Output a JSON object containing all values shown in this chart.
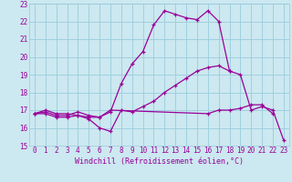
{
  "xlabel": "Windchill (Refroidissement éolien,°C)",
  "background_color": "#cce8f0",
  "grid_color": "#99ccdd",
  "line_color": "#990099",
  "xlim": [
    -0.5,
    23.5
  ],
  "ylim": [
    15,
    23
  ],
  "xticks": [
    0,
    1,
    2,
    3,
    4,
    5,
    6,
    7,
    8,
    9,
    10,
    11,
    12,
    13,
    14,
    15,
    16,
    17,
    18,
    19,
    20,
    21,
    22,
    23
  ],
  "yticks": [
    15,
    16,
    17,
    18,
    19,
    20,
    21,
    22,
    23
  ],
  "series": [
    {
      "x": [
        0,
        1,
        2,
        3,
        4,
        5,
        6,
        7,
        8,
        9,
        10,
        11,
        12,
        13,
        14,
        15,
        16,
        17,
        18,
        19,
        20,
        21,
        22,
        23
      ],
      "y": [
        16.8,
        16.8,
        16.6,
        16.6,
        16.7,
        16.5,
        16.0,
        15.8,
        17.0,
        16.9,
        17.2,
        17.5,
        18.0,
        18.4,
        18.8,
        19.2,
        19.4,
        19.5,
        19.2,
        19.0,
        17.0,
        17.2,
        17.0,
        15.3
      ]
    },
    {
      "x": [
        0,
        1,
        2,
        3,
        4,
        5,
        6,
        7,
        8,
        9,
        10,
        11,
        12,
        13,
        14,
        15,
        16,
        17,
        18
      ],
      "y": [
        16.8,
        16.9,
        16.7,
        16.7,
        16.9,
        16.7,
        16.6,
        16.9,
        18.5,
        19.6,
        20.3,
        21.8,
        22.6,
        22.4,
        22.2,
        22.1,
        22.6,
        22.0,
        19.2
      ]
    },
    {
      "x": [
        0,
        1,
        2,
        3,
        4,
        5,
        6,
        7,
        16,
        17,
        18,
        19,
        20,
        21,
        22
      ],
      "y": [
        16.8,
        17.0,
        16.8,
        16.8,
        16.7,
        16.6,
        16.6,
        17.0,
        16.8,
        17.0,
        17.0,
        17.1,
        17.3,
        17.3,
        16.8
      ]
    }
  ]
}
